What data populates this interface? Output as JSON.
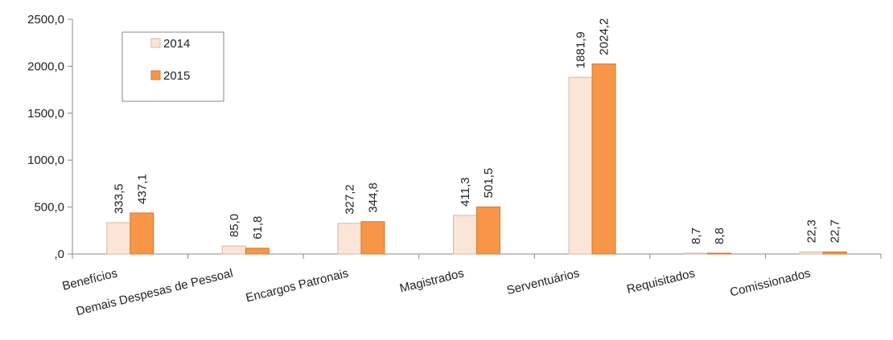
{
  "chart_data": {
    "type": "bar",
    "categories": [
      "Benefícios",
      "Demais Despesas de Pessoal",
      "Encargos Patronais",
      "Magistrados",
      "Serventuários",
      "Requisitados",
      "Comissionados"
    ],
    "series": [
      {
        "name": "2014",
        "values": [
          333.5,
          85.0,
          327.2,
          411.3,
          1881.9,
          8.7,
          22.3
        ],
        "labels": [
          "333,5",
          "85,0",
          "327,2",
          "411,3",
          "1881,9",
          "8,7",
          "22,3"
        ],
        "color": "#fbe5d6"
      },
      {
        "name": "2015",
        "values": [
          437.1,
          61.8,
          344.8,
          501.5,
          2024.2,
          8.8,
          22.7
        ],
        "labels": [
          "437,1",
          "61,8",
          "344,8",
          "501,5",
          "2024,2",
          "8,8",
          "22,7"
        ],
        "color": "#f79646"
      }
    ],
    "ylim": [
      0,
      2500
    ],
    "yticks": [
      0,
      500,
      1000,
      1500,
      2000,
      2500
    ],
    "ytick_labels": [
      ",0",
      "500,0",
      "1000,0",
      "1500,0",
      "2000,0",
      "2500,0"
    ],
    "xlabel": "",
    "ylabel": "",
    "title": "",
    "grid": false,
    "legend_position": "top-left"
  }
}
